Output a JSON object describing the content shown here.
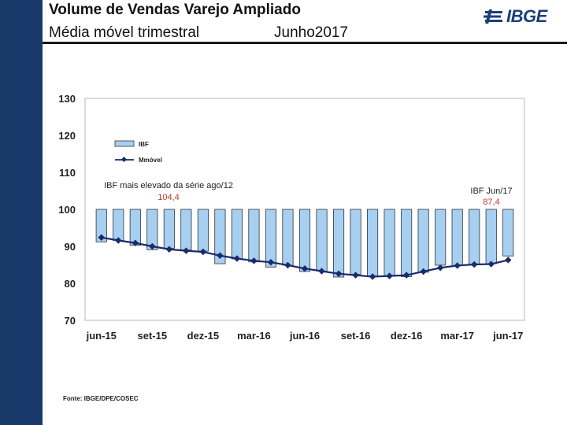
{
  "header": {
    "title": "Volume de Vendas Varejo Ampliado",
    "subtitle": "Média móvel trimestral",
    "date": "Junho2017",
    "logo_text": "IBGE"
  },
  "colors": {
    "sidebar": "#173a6b",
    "bar_fill": "#a6cff2",
    "bar_stroke": "#333333",
    "line": "#1b2a6b",
    "annotation_value": "#c0392b"
  },
  "chart_data": {
    "type": "bar",
    "baseline": 100,
    "ylim": [
      70,
      130
    ],
    "yticks": [
      130,
      120,
      110,
      100,
      90,
      80,
      70
    ],
    "xtick_labels": [
      "jun-15",
      "set-15",
      "dez-15",
      "mar-16",
      "jun-16",
      "set-16",
      "dez-16",
      "mar-17",
      "jun-17"
    ],
    "series": [
      {
        "name": "IBF",
        "type": "bar",
        "values": [
          91.2,
          91.6,
          90.3,
          89.1,
          89.5,
          89.0,
          88.7,
          85.3,
          86.6,
          85.8,
          84.4,
          84.9,
          83.2,
          83.3,
          81.7,
          82.4,
          82.0,
          81.9,
          81.8,
          83.0,
          84.9,
          84.8,
          85.1,
          85.3,
          87.4
        ]
      },
      {
        "name": "Mmóvel",
        "type": "line",
        "values": [
          92.4,
          91.6,
          90.9,
          90.0,
          89.2,
          88.8,
          88.5,
          87.5,
          86.7,
          86.1,
          85.7,
          84.9,
          84.0,
          83.3,
          82.6,
          82.2,
          81.8,
          82.0,
          82.2,
          83.2,
          84.2,
          84.8,
          85.1,
          85.2,
          86.3
        ]
      }
    ],
    "annotations": [
      {
        "label": "IBF mais elevado da série ago/12",
        "value": "104,4"
      },
      {
        "label": "IBF Jun/17",
        "value": "87,4"
      }
    ]
  },
  "source": "Fonte: IBGE/DPE/COSEC"
}
